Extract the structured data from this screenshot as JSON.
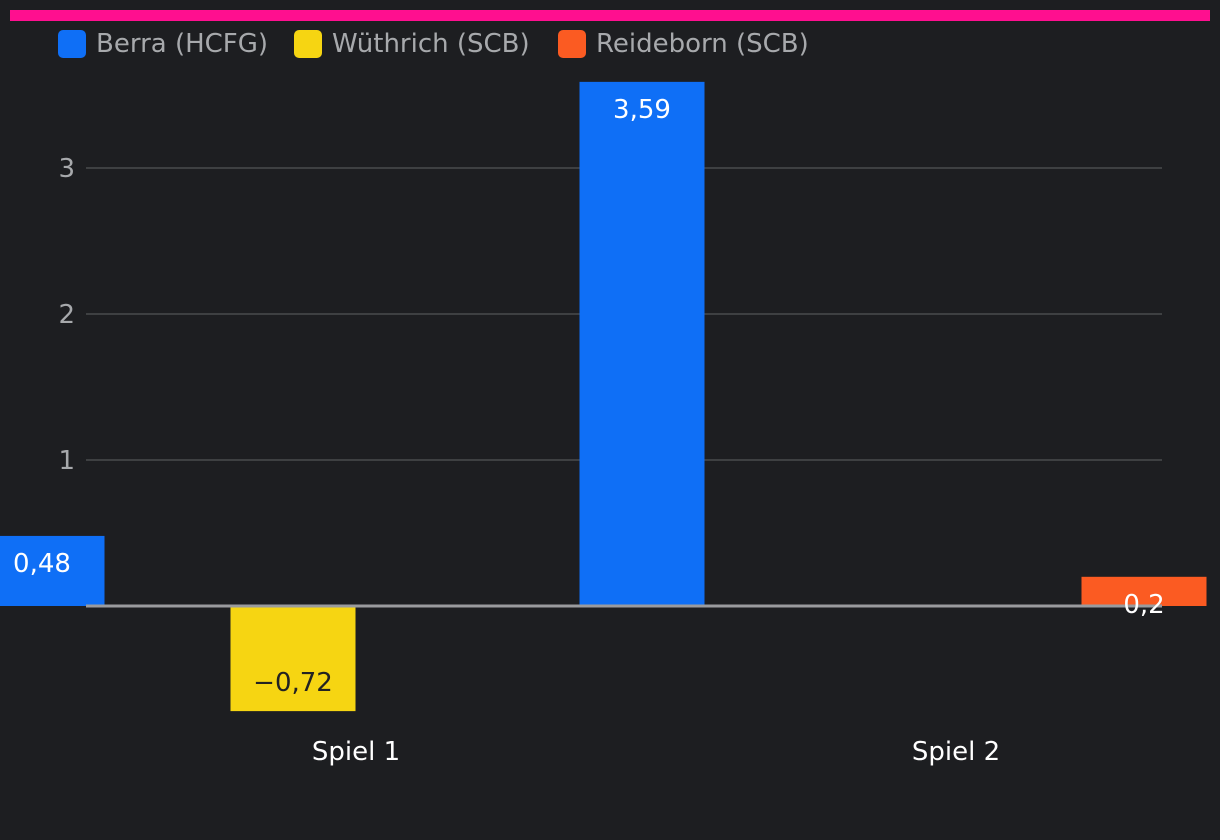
{
  "chart_data": {
    "type": "bar",
    "title": "",
    "xlabel": "",
    "ylabel": "",
    "categories": [
      "Spiel 1",
      "Spiel 2"
    ],
    "ylim": [
      -0.72,
      3.59
    ],
    "y_ticks": [
      1,
      2,
      3
    ],
    "y_tick_labels": [
      "1",
      "2",
      "3"
    ],
    "legend_position": "top-left",
    "series": [
      {
        "name": "Berra (HCFG)",
        "color": "#0f6ff6",
        "label_color": "#ffffff",
        "values": [
          0.48,
          3.59
        ],
        "labels": [
          "0,48",
          "3,59"
        ]
      },
      {
        "name": "Wüthrich (SCB)",
        "color": "#f6d512",
        "label_color": "#222222",
        "values": [
          -0.72,
          null
        ],
        "labels": [
          "−0,72",
          ""
        ]
      },
      {
        "name": "Reideborn (SCB)",
        "color": "#fb5b22",
        "label_color": "#ffffff",
        "values": [
          null,
          0.2
        ],
        "labels": [
          "",
          "0,2"
        ]
      }
    ],
    "accent_color": "#ff0f8f"
  }
}
